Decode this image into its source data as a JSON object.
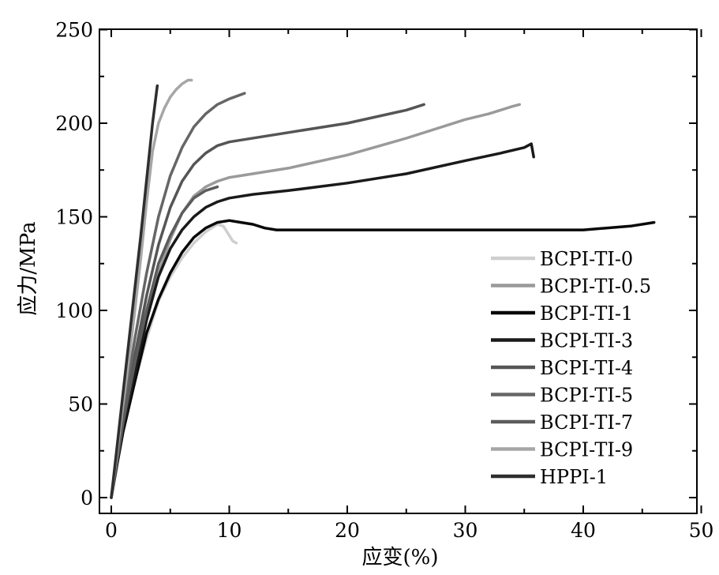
{
  "chart_data": {
    "type": "line",
    "xlabel": "应变(%)",
    "ylabel": "应力/MPa",
    "xlim": [
      0,
      50
    ],
    "ylim": [
      0,
      250
    ],
    "x_ticks": [
      0,
      10,
      20,
      30,
      40,
      50
    ],
    "y_ticks": [
      0,
      50,
      100,
      150,
      200,
      250
    ],
    "grid": false,
    "legend": "bottom-right",
    "series": [
      {
        "name": "BCPI-TI-0",
        "color": "#cfcfcf",
        "x": [
          0,
          0.5,
          1,
          2,
          3,
          4,
          5,
          6,
          7,
          8,
          9,
          9.5,
          10,
          10.3,
          10.6
        ],
        "y": [
          0,
          18,
          35,
          62,
          85,
          105,
          118,
          128,
          136,
          142,
          146,
          145,
          140,
          137,
          136
        ]
      },
      {
        "name": "BCPI-TI-0.5",
        "color": "#9a9a9a",
        "x": [
          0,
          0.5,
          1,
          2,
          3,
          4,
          5,
          6,
          7,
          8,
          9,
          10,
          11,
          15,
          20,
          25,
          30,
          32,
          34,
          34.6
        ],
        "y": [
          0,
          20,
          38,
          68,
          95,
          120,
          138,
          152,
          161,
          166,
          169,
          171,
          172,
          176,
          183,
          192,
          202,
          205,
          209,
          210
        ]
      },
      {
        "name": "BCPI-TI-1",
        "color": "#080808",
        "x": [
          0,
          0.5,
          1,
          2,
          3,
          4,
          5,
          6,
          7,
          8,
          9,
          10,
          11,
          12,
          13,
          14,
          15,
          20,
          25,
          30,
          35,
          40,
          44,
          46
        ],
        "y": [
          0,
          18,
          35,
          62,
          88,
          106,
          120,
          131,
          139,
          144,
          147,
          148,
          147,
          146,
          144,
          143,
          143,
          143,
          143,
          143,
          143,
          143,
          145,
          147
        ]
      },
      {
        "name": "BCPI-TI-3",
        "color": "#1a1a1a",
        "x": [
          0,
          0.5,
          1,
          2,
          3,
          4,
          5,
          6,
          7,
          8,
          9,
          10,
          12,
          15,
          20,
          25,
          30,
          33,
          35,
          35.6,
          35.8
        ],
        "y": [
          0,
          19,
          37,
          66,
          95,
          118,
          133,
          143,
          150,
          155,
          158,
          160,
          162,
          164,
          168,
          173,
          180,
          184,
          187,
          189,
          182
        ]
      },
      {
        "name": "BCPI-TI-4",
        "color": "#555555",
        "x": [
          0,
          0.5,
          1,
          2,
          3,
          4,
          5,
          6,
          7,
          8,
          9,
          10,
          11,
          15,
          20,
          25,
          26.5
        ],
        "y": [
          0,
          22,
          42,
          76,
          108,
          135,
          155,
          169,
          178,
          184,
          188,
          190,
          191,
          195,
          200,
          207,
          210
        ]
      },
      {
        "name": "BCPI-TI-5",
        "color": "#666666",
        "x": [
          0,
          0.5,
          1,
          2,
          3,
          4,
          5,
          6,
          7,
          8,
          9,
          10,
          11.3
        ],
        "y": [
          0,
          24,
          46,
          85,
          120,
          150,
          172,
          187,
          198,
          205,
          210,
          213,
          216
        ]
      },
      {
        "name": "BCPI-TI-7",
        "color": "#5c5c5c",
        "x": [
          0,
          0.5,
          1,
          2,
          3,
          4,
          5,
          6,
          7,
          8,
          9
        ],
        "y": [
          0,
          20,
          40,
          72,
          100,
          125,
          140,
          152,
          160,
          164,
          166
        ]
      },
      {
        "name": "BCPI-TI-9",
        "color": "#a6a6a6",
        "x": [
          0,
          0.5,
          1,
          1.5,
          2,
          2.5,
          3,
          3.5,
          4,
          4.5,
          5,
          5.5,
          6,
          6.5,
          6.8
        ],
        "y": [
          0,
          25,
          50,
          74,
          100,
          128,
          158,
          185,
          200,
          208,
          214,
          218,
          221,
          223,
          223
        ]
      },
      {
        "name": "HPPI-1",
        "color": "#2e2e2e",
        "x": [
          0,
          0.5,
          1,
          1.5,
          2,
          2.5,
          3,
          3.5,
          3.9
        ],
        "y": [
          0,
          28,
          56,
          84,
          112,
          140,
          170,
          200,
          220
        ]
      }
    ]
  }
}
